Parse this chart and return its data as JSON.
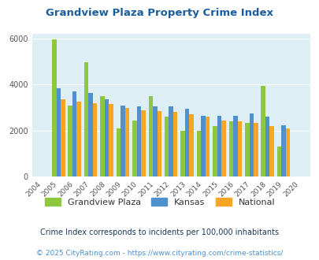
{
  "title": "Grandview Plaza Property Crime Index",
  "years": [
    2004,
    2005,
    2006,
    2007,
    2008,
    2009,
    2010,
    2011,
    2012,
    2013,
    2014,
    2015,
    2016,
    2017,
    2018,
    2019,
    2020
  ],
  "grandview": [
    null,
    5950,
    3100,
    4950,
    3500,
    2100,
    2450,
    3500,
    2600,
    2000,
    2000,
    2200,
    2400,
    2350,
    3950,
    1300,
    null
  ],
  "kansas": [
    null,
    3850,
    3700,
    3650,
    3350,
    3100,
    3050,
    3050,
    3050,
    2950,
    2650,
    2650,
    2650,
    2750,
    2600,
    2250,
    null
  ],
  "national": [
    null,
    3350,
    3250,
    3200,
    3150,
    3000,
    2900,
    2850,
    2800,
    2700,
    2600,
    2450,
    2400,
    2350,
    2200,
    2100,
    null
  ],
  "color_grandview": "#8dc63f",
  "color_kansas": "#4f90cd",
  "color_national": "#f5a623",
  "bg_color": "#ddeef4",
  "ylim": [
    0,
    6200
  ],
  "yticks": [
    0,
    2000,
    4000,
    6000
  ],
  "legend_labels": [
    "Grandview Plaza",
    "Kansas",
    "National"
  ],
  "footer_line1": "Crime Index corresponds to incidents per 100,000 inhabitants",
  "footer_line2": "© 2025 CityRating.com - https://www.cityrating.com/crime-statistics/",
  "title_color": "#1a5e9e",
  "legend_text_color": "#333333",
  "footer1_color": "#1a3a5c",
  "footer2_color": "#4f90cd"
}
